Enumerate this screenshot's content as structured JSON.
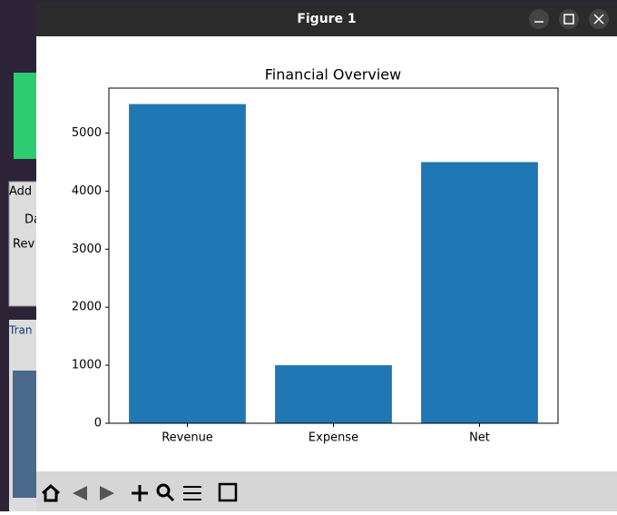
{
  "window": {
    "title": "Figure 1"
  },
  "background": {
    "labels": [
      "Add",
      "Da",
      "Rev",
      "Tran"
    ]
  },
  "chart_data": {
    "type": "bar",
    "title": "Financial Overview",
    "categories": [
      "Revenue",
      "Expense",
      "Net"
    ],
    "values": [
      5500,
      1000,
      4500
    ],
    "color": "#1f77b4",
    "ylim": [
      0,
      5775
    ],
    "yticks": [
      0,
      1000,
      2000,
      3000,
      4000,
      5000
    ],
    "grid": false
  }
}
